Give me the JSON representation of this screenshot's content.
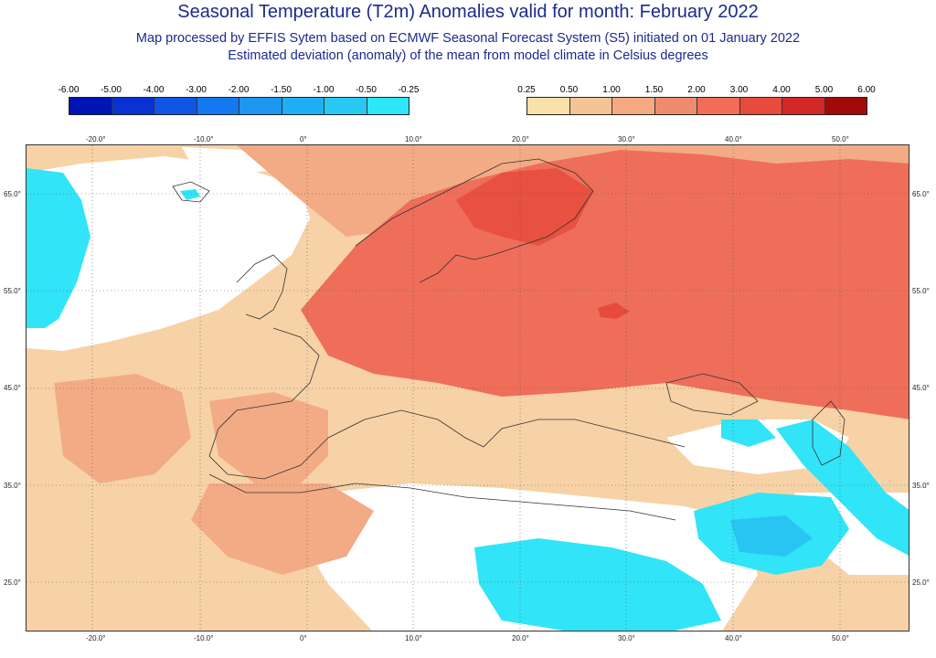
{
  "header": {
    "title": "Seasonal Temperature (T2m) Anomalies valid for month: February 2022",
    "subtitle1": "Map processed by EFFIS Sytem based on ECMWF Seasonal Forecast System (S5) initiated on 01 January 2022",
    "subtitle2": "Estimated deviation (anomaly) of the mean from model climate in Celsius degrees"
  },
  "colorbar_negative": {
    "labels": [
      "-6.00",
      "-5.00",
      "-4.00",
      "-3.00",
      "-2.00",
      "-1.50",
      "-1.00",
      "-0.50",
      "-0.25"
    ],
    "colors": [
      "#0014b4",
      "#0a32d2",
      "#0f55e6",
      "#1478f0",
      "#1e96f0",
      "#1eaff5",
      "#28c8f5",
      "#2de6fa"
    ]
  },
  "colorbar_positive": {
    "labels": [
      "0.25",
      "0.50",
      "1.00",
      "1.50",
      "2.00",
      "3.00",
      "4.00",
      "5.00",
      "6.00"
    ],
    "colors": [
      "#fae1aa",
      "#f5c396",
      "#f5aa82",
      "#f08c6e",
      "#f06e55",
      "#e64b3c",
      "#d22828",
      "#a00a0a"
    ]
  },
  "map": {
    "lon_labels": [
      "-20.0°",
      "-10.0°",
      "0°",
      "10.0°",
      "20.0°",
      "30.0°",
      "40.0°",
      "50.0°"
    ],
    "lat_labels": [
      "65.0°",
      "55.0°",
      "45.0°",
      "35.0°",
      "25.0°"
    ],
    "colors": {
      "ocean_light": "#f7d2a6",
      "land_mid": "#f3ab85",
      "core_red": "#ee6e5a",
      "core_dark": "#e8503f",
      "cold": "#31e4f7",
      "cold_mid": "#28c5f2",
      "border": "#333333"
    }
  }
}
